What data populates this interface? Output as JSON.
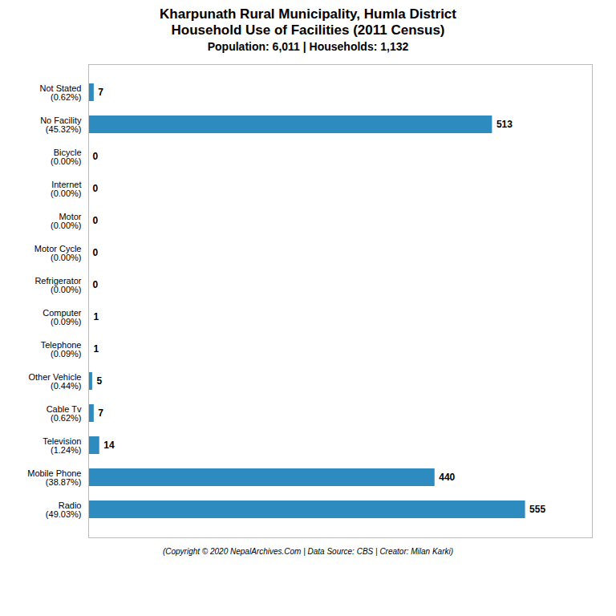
{
  "chart_data": {
    "type": "bar",
    "orientation": "horizontal",
    "title": "Kharpunath Rural Municipality, Humla District\nHousehold Use of Facilities (2011 Census)",
    "subtitle": "Population: 6,011 | Households: 1,132",
    "caption": "(Copyright © 2020 NepalArchives.Com | Data Source: CBS | Creator: Milan Karki)",
    "categories": [
      "Not Stated\n(0.62%)",
      "No Facility\n(45.32%)",
      "Bicycle\n(0.00%)",
      "Internet\n(0.00%)",
      "Motor\n(0.00%)",
      "Motor Cycle\n(0.00%)",
      "Refrigerator\n(0.00%)",
      "Computer\n(0.09%)",
      "Telephone\n(0.09%)",
      "Other Vehicle\n(0.44%)",
      "Cable Tv\n(0.62%)",
      "Television\n(1.24%)",
      "Mobile Phone\n(38.87%)",
      "Radio\n(49.03%)"
    ],
    "values": [
      7,
      513,
      0,
      0,
      0,
      0,
      0,
      1,
      1,
      5,
      7,
      14,
      440,
      555
    ],
    "color": "#2e8bc0",
    "xlim": [
      0,
      640
    ],
    "data_labels": true,
    "tick_labels": "y",
    "grid": false
  }
}
